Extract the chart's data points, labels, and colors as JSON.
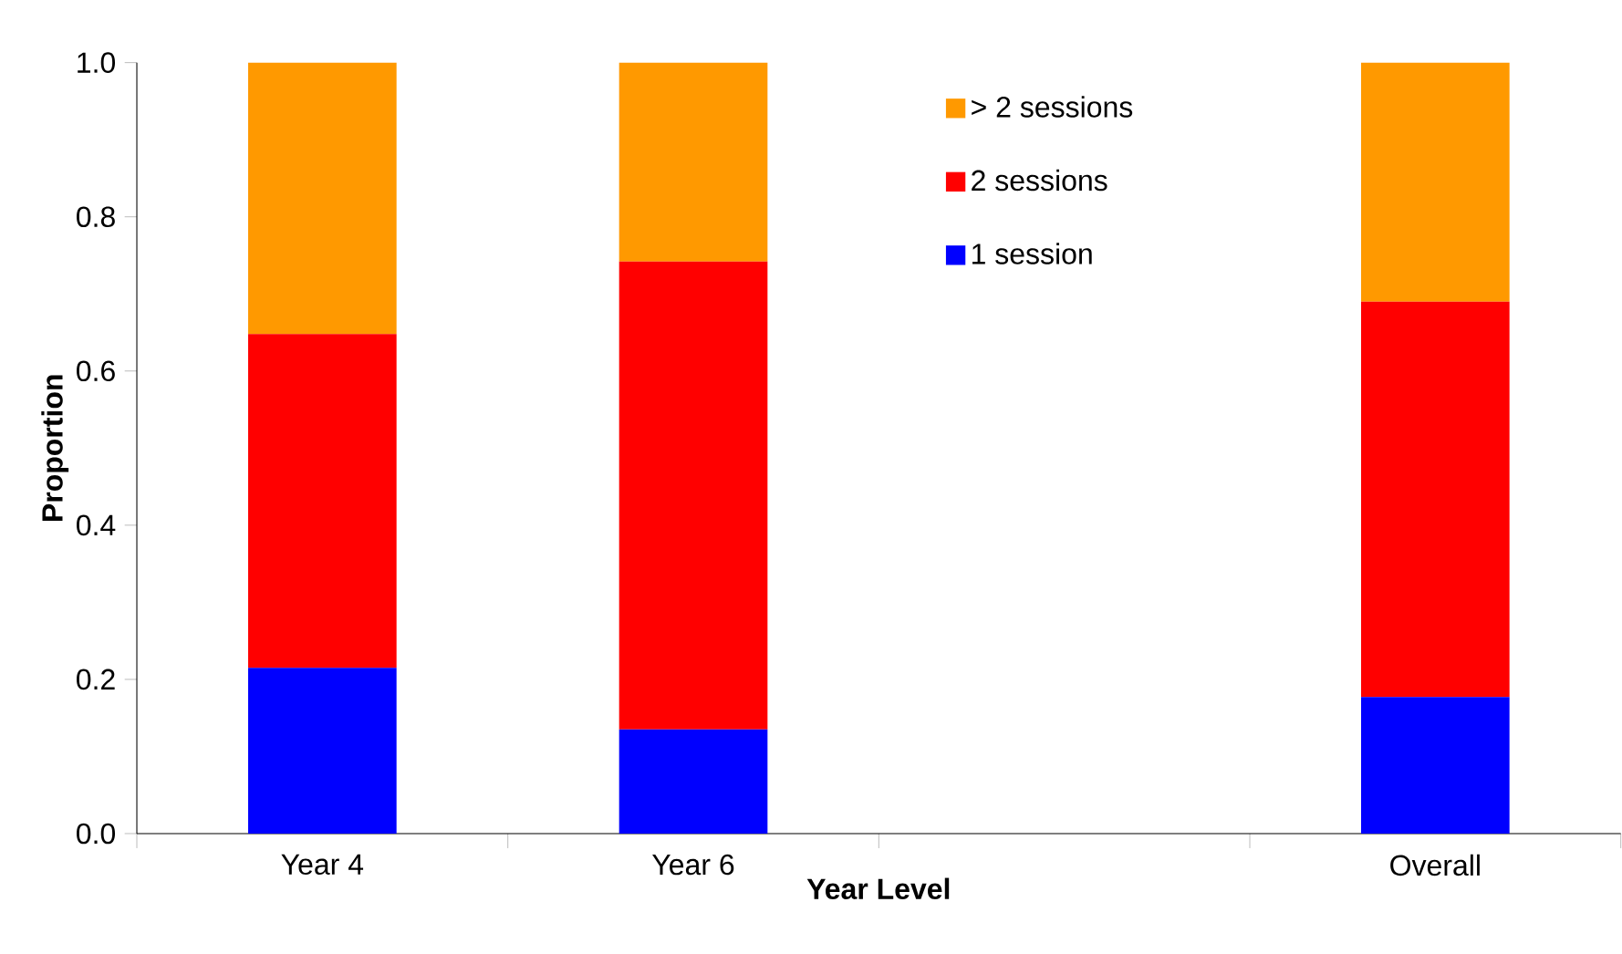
{
  "chart_data": {
    "type": "bar",
    "stacked": true,
    "xlabel": "Year Level",
    "ylabel": "Proportion",
    "categories": [
      "Year 4",
      "Year 6",
      null,
      "Overall"
    ],
    "series": [
      {
        "name": "1 session",
        "color": "#0000ff",
        "values": [
          0.215,
          0.135,
          null,
          0.177
        ]
      },
      {
        "name": "2 sessions",
        "color": "#ff0000",
        "values": [
          0.433,
          0.607,
          null,
          0.513
        ]
      },
      {
        "name": "> 2 sessions",
        "color": "#ff9900",
        "values": [
          0.352,
          0.258,
          null,
          0.31
        ]
      }
    ],
    "ylim": [
      0,
      1.0
    ],
    "yticks": [
      {
        "value": 0,
        "label": "0.0"
      },
      {
        "value": 0.2,
        "label": "0.2"
      },
      {
        "value": 0.4,
        "label": "0.4"
      },
      {
        "value": 0.6,
        "label": "0.6"
      },
      {
        "value": 0.8,
        "label": "0.8"
      },
      {
        "value": 1.0,
        "label": "1.0"
      }
    ],
    "legend": "top",
    "grid": false
  }
}
